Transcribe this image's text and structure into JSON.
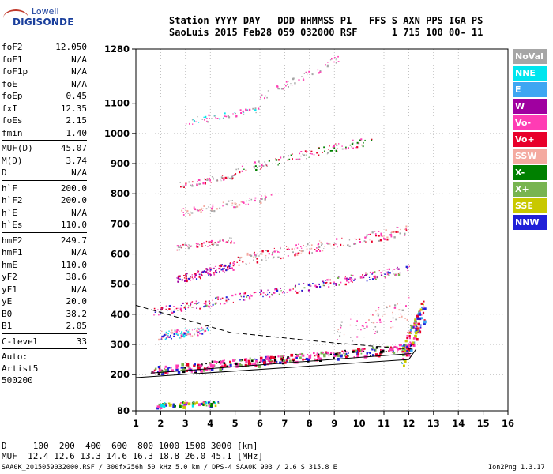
{
  "logo": {
    "line1": "Lowell",
    "line2": "DIGISONDE"
  },
  "header": {
    "line1": "Station YYYY DAY   DDD HHMMSS P1   FFS S AXN PPS IGA PS",
    "line2": "SaoLuis 2015 Feb28 059 032000 RSF      1 715 100 00- 11"
  },
  "params": {
    "group1": [
      {
        "k": "foF2",
        "v": "12.050"
      },
      {
        "k": "foF1",
        "v": "N/A"
      },
      {
        "k": "foF1p",
        "v": "N/A"
      },
      {
        "k": "foE",
        "v": "N/A"
      },
      {
        "k": "foEp",
        "v": "0.45"
      },
      {
        "k": "fxI",
        "v": "12.35"
      },
      {
        "k": "foEs",
        "v": "2.15"
      },
      {
        "k": "fmin",
        "v": "1.40"
      }
    ],
    "group2": [
      {
        "k": "MUF(D)",
        "v": "45.07"
      },
      {
        "k": "M(D)",
        "v": "3.74"
      },
      {
        "k": "D",
        "v": "N/A"
      }
    ],
    "group3": [
      {
        "k": "h`F",
        "v": "200.0"
      },
      {
        "k": "h`F2",
        "v": "200.0"
      },
      {
        "k": "h`E",
        "v": "N/A"
      },
      {
        "k": "h`Es",
        "v": "110.0"
      }
    ],
    "group4": [
      {
        "k": "hmF2",
        "v": "249.7"
      },
      {
        "k": "hmF1",
        "v": "N/A"
      },
      {
        "k": "hmE",
        "v": "110.0"
      },
      {
        "k": "yF2",
        "v": "38.6"
      },
      {
        "k": "yF1",
        "v": "N/A"
      },
      {
        "k": "yE",
        "v": "20.0"
      },
      {
        "k": "B0",
        "v": "38.2"
      },
      {
        "k": "B1",
        "v": "2.05"
      }
    ],
    "group5": [
      {
        "k": "C-level",
        "v": "33"
      }
    ],
    "auto": [
      "Auto:",
      "Artist5",
      "500200"
    ]
  },
  "legend": [
    {
      "label": "NoVal",
      "color": "#a6a6a6"
    },
    {
      "label": "NNE",
      "color": "#00e5ee"
    },
    {
      "label": "E",
      "color": "#3ea6f2"
    },
    {
      "label": "W",
      "color": "#a000a0"
    },
    {
      "label": "Vo-",
      "color": "#ff3cb4"
    },
    {
      "label": "Vo+",
      "color": "#e8002a"
    },
    {
      "label": "SSW",
      "color": "#f4aaa0"
    },
    {
      "label": "X-",
      "color": "#008000"
    },
    {
      "label": "X+",
      "color": "#78b450"
    },
    {
      "label": "SSE",
      "color": "#c8c800"
    },
    {
      "label": "NNW",
      "color": "#2020d8"
    }
  ],
  "footer": {
    "line1": "D     100  200  400  600  800 1000 1500 3000 [km]",
    "line2": "MUF  12.4 12.6 13.3 14.6 16.3 18.8 26.0 45.1 [MHz]",
    "line3": "SAA0K_2015059032000.RSF / 300fx256h 50 kHz 5.0 km / DPS-4 SAA0K 903 / 2.6 S 315.8 E",
    "line4": "Ion2Png 1.3.17"
  },
  "chart_data": {
    "type": "scatter",
    "x_ticks": [
      1,
      2,
      3,
      4,
      5,
      6,
      7,
      8,
      9,
      10,
      11,
      12,
      13,
      14,
      15,
      16
    ],
    "y_ticks": [
      80,
      200,
      300,
      400,
      500,
      600,
      700,
      800,
      900,
      1000,
      1100,
      1280
    ],
    "xlim": [
      1,
      16
    ],
    "ylim": [
      80,
      1280
    ],
    "xlabel": "",
    "ylabel": "",
    "grid": true,
    "series": [
      {
        "name": "NoVal",
        "color": "#a6a6a6"
      },
      {
        "name": "NNE",
        "color": "#00e5ee"
      },
      {
        "name": "E",
        "color": "#3ea6f2"
      },
      {
        "name": "W",
        "color": "#a000a0"
      },
      {
        "name": "Vo-",
        "color": "#ff3cb4"
      },
      {
        "name": "Vo+",
        "color": "#e8002a"
      },
      {
        "name": "SSW",
        "color": "#f4aaa0"
      },
      {
        "name": "X-",
        "color": "#008000"
      },
      {
        "name": "X+",
        "color": "#78b450"
      },
      {
        "name": "SSE",
        "color": "#c8c800"
      },
      {
        "name": "NNW",
        "color": "#2020d8"
      }
    ],
    "traces": [
      {
        "x0": 1.6,
        "y0": 215,
        "x1": 12.1,
        "y1": 290,
        "spread": 14,
        "count": 360,
        "mix": [
          5,
          4,
          4,
          8,
          10,
          11
        ],
        "thick": true
      },
      {
        "x0": 1.7,
        "y0": 410,
        "x1": 12.0,
        "y1": 550,
        "spread": 14,
        "count": 280,
        "mix": [
          4,
          5,
          4,
          3,
          8,
          10
        ],
        "thick": false
      },
      {
        "x0": 1.9,
        "y0": 330,
        "x1": 3.9,
        "y1": 350,
        "spread": 14,
        "count": 110,
        "mix": [
          10,
          6,
          4,
          1
        ],
        "thick": false
      },
      {
        "x0": 2.6,
        "y0": 515,
        "x1": 5.0,
        "y1": 565,
        "spread": 14,
        "count": 120,
        "mix": [
          10,
          4,
          3,
          5
        ],
        "thick": false
      },
      {
        "x0": 5.0,
        "y0": 580,
        "x1": 12.0,
        "y1": 680,
        "spread": 18,
        "count": 190,
        "mix": [
          4,
          6,
          5,
          0
        ],
        "thick": false
      },
      {
        "x0": 2.6,
        "y0": 620,
        "x1": 5.0,
        "y1": 650,
        "spread": 10,
        "count": 70,
        "mix": [
          4,
          5,
          0
        ],
        "thick": false
      },
      {
        "x0": 2.8,
        "y0": 740,
        "x1": 6.5,
        "y1": 790,
        "spread": 12,
        "count": 80,
        "mix": [
          4,
          6,
          0
        ],
        "thick": false
      },
      {
        "x0": 2.7,
        "y0": 830,
        "x1": 5.0,
        "y1": 860,
        "spread": 10,
        "count": 60,
        "mix": [
          4,
          5,
          0
        ],
        "thick": false
      },
      {
        "x0": 5.0,
        "y0": 880,
        "x1": 10.5,
        "y1": 980,
        "spread": 14,
        "count": 110,
        "mix": [
          4,
          5,
          7,
          0
        ],
        "thick": false
      },
      {
        "x0": 3.0,
        "y0": 1040,
        "x1": 6.0,
        "y1": 1080,
        "spread": 12,
        "count": 55,
        "mix": [
          4,
          0,
          1
        ],
        "thick": false
      },
      {
        "x0": 6.0,
        "y0": 1120,
        "x1": 9.2,
        "y1": 1250,
        "spread": 12,
        "count": 55,
        "mix": [
          4,
          0
        ],
        "thick": false
      },
      {
        "x0": 1.8,
        "y0": 100,
        "x1": 4.5,
        "y1": 108,
        "spread": 8,
        "count": 70,
        "mix": [
          10,
          9,
          7,
          4,
          8,
          1
        ],
        "thick": true
      },
      {
        "x0": 11.7,
        "y0": 260,
        "x1": 12.6,
        "y1": 420,
        "spread": 40,
        "count": 120,
        "mix": [
          5,
          4,
          8,
          9,
          2,
          10
        ],
        "thick": true
      },
      {
        "x0": 9.0,
        "y0": 330,
        "x1": 12.0,
        "y1": 420,
        "spread": 40,
        "count": 70,
        "mix": [
          6,
          4,
          0
        ],
        "thick": false
      }
    ],
    "model_lines": [
      {
        "style": "solid",
        "x": [
          1.0,
          12.0,
          12.3
        ],
        "y": [
          190,
          250,
          285
        ]
      },
      {
        "style": "dashed",
        "x": [
          1.0,
          4.8,
          9.0,
          12.0,
          12.3
        ],
        "y": [
          430,
          340,
          305,
          285,
          285
        ]
      },
      {
        "style": "solid",
        "x": [
          1.6,
          12.1
        ],
        "y": [
          205,
          270
        ]
      }
    ]
  }
}
